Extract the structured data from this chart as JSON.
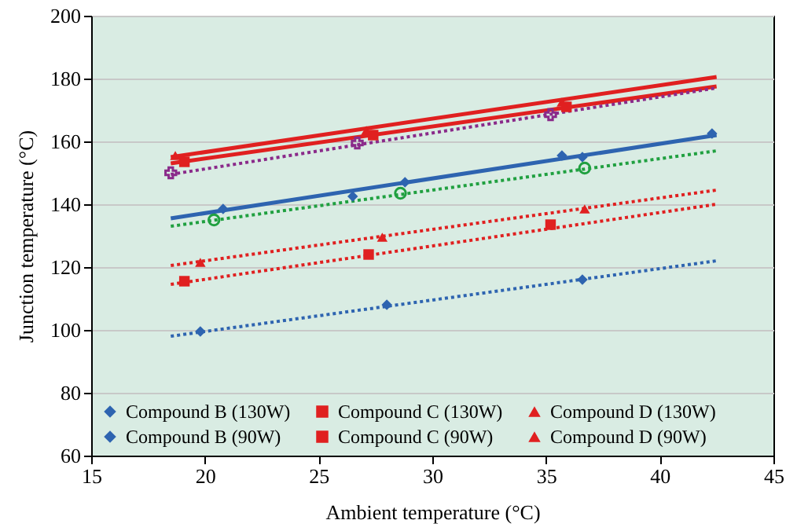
{
  "chart_data": {
    "type": "scatter",
    "xlabel": "Ambient temperature (°C)",
    "ylabel": "Junction temperature (°C)",
    "xlim": [
      15,
      45
    ],
    "xticks": [
      15,
      20,
      25,
      30,
      35,
      40,
      45
    ],
    "ylim": [
      60,
      200
    ],
    "yticks": [
      60,
      80,
      100,
      120,
      140,
      160,
      180,
      200
    ],
    "grid": "y",
    "legend": "bottom",
    "series": [
      {
        "name": "Compound B (130W)",
        "marker": "diamond",
        "color": "#2e64b0",
        "x": [
          20.8,
          26.5,
          28.8,
          35.7,
          36.6,
          42.3
        ],
        "values": [
          138.5,
          142.5,
          147,
          155.5,
          155,
          162.5
        ]
      },
      {
        "name": "Compound C (130W)",
        "marker": "square",
        "color": "#e02020",
        "x": [
          19.1,
          27.4,
          35.9
        ],
        "values": [
          153.5,
          162,
          171
        ]
      },
      {
        "name": "Compound D (130W)",
        "marker": "triangle",
        "color": "#e02020",
        "x": [
          18.7,
          27.1,
          35.7
        ],
        "values": [
          155.5,
          163.5,
          172.5
        ]
      },
      {
        "name": "Compound B (90W)",
        "marker": "diamond",
        "color": "#2e64b0",
        "x": [
          19.8,
          28,
          36.6
        ],
        "values": [
          99.5,
          108,
          116
        ]
      },
      {
        "name": "Compound C (90W)",
        "marker": "square",
        "color": "#e02020",
        "x": [
          19.1,
          27.2,
          35.2
        ],
        "values": [
          115.5,
          124,
          133.5
        ]
      },
      {
        "name": "Compound D (90W)",
        "marker": "triangle",
        "color": "#e02020",
        "x": [
          19.8,
          27.8,
          36.7
        ],
        "values": [
          121.5,
          129.5,
          138.5
        ]
      },
      {
        "marker": "circle",
        "color": "#20a040",
        "x": [
          20.4,
          28.6,
          36.7
        ],
        "values": [
          135,
          143.5,
          151.5
        ]
      },
      {
        "marker": "cross",
        "color": "#8a2a8a",
        "x": [
          18.5,
          26.7,
          35.2
        ],
        "values": [
          150,
          159.5,
          168.5
        ]
      },
      {
        "type": "line",
        "line_style": "solid",
        "color": "#2e64b0",
        "x": [
          18.5,
          42.5
        ],
        "values": [
          135.5,
          162
        ]
      },
      {
        "type": "line",
        "line_style": "solid",
        "color": "#e02020",
        "x": [
          18.5,
          42.5
        ],
        "values": [
          153,
          177.5
        ]
      },
      {
        "type": "line",
        "line_style": "solid",
        "color": "#e02020",
        "x": [
          18.5,
          42.5
        ],
        "values": [
          155,
          180.5
        ]
      },
      {
        "type": "line",
        "line_style": "dotted",
        "color": "#2e64b0",
        "x": [
          18.5,
          42.5
        ],
        "values": [
          98,
          122
        ]
      },
      {
        "type": "line",
        "line_style": "dotted",
        "color": "#e02020",
        "x": [
          18.5,
          42.5
        ],
        "values": [
          114.5,
          140
        ]
      },
      {
        "type": "line",
        "line_style": "dotted",
        "color": "#e02020",
        "x": [
          18.5,
          42.5
        ],
        "values": [
          120.5,
          144.5
        ]
      },
      {
        "type": "line",
        "line_style": "dotted",
        "color": "#20a040",
        "x": [
          18.5,
          42.5
        ],
        "values": [
          133,
          157
        ]
      },
      {
        "type": "line",
        "line_style": "dotted",
        "color": "#8a2a8a",
        "x": [
          18.5,
          42.5
        ],
        "values": [
          149.5,
          177
        ]
      }
    ]
  }
}
